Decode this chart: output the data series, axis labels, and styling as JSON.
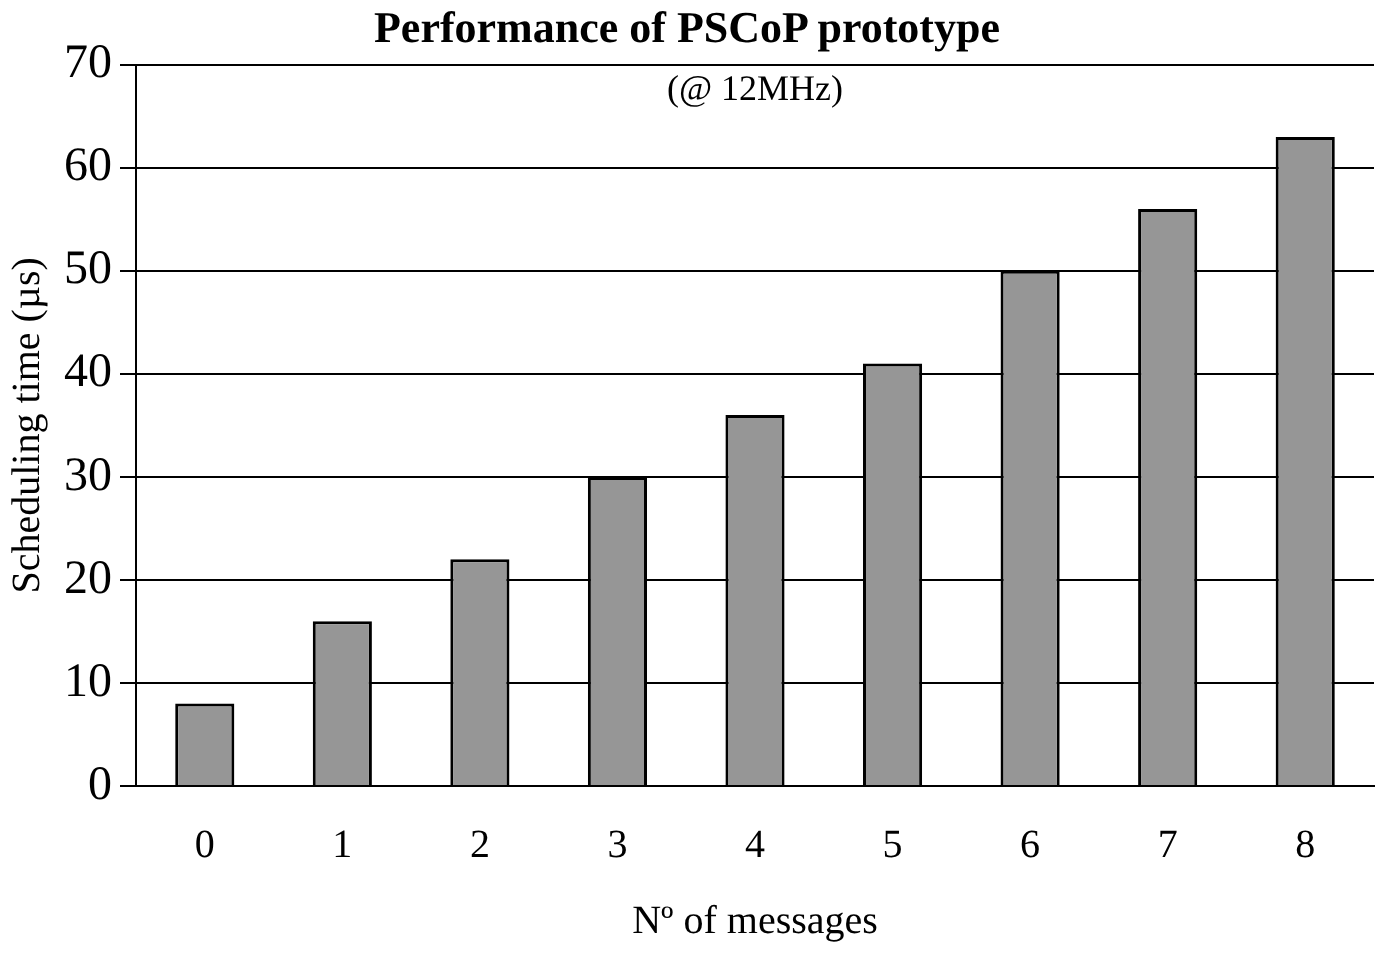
{
  "chart_data": {
    "type": "bar",
    "title": "Performance of PSCoP prototype",
    "subtitle": "(@ 12MHz)",
    "xlabel": "Nº of messages",
    "ylabel": "Scheduling time (µs)",
    "categories": [
      "0",
      "1",
      "2",
      "3",
      "4",
      "5",
      "6",
      "7",
      "8"
    ],
    "values": [
      8,
      16,
      22,
      30,
      36,
      41,
      50,
      56,
      63
    ],
    "color": "#969696",
    "ylim": [
      0,
      70
    ],
    "yticks": [
      0,
      10,
      20,
      30,
      40,
      50,
      60,
      70
    ],
    "grid": "y"
  }
}
